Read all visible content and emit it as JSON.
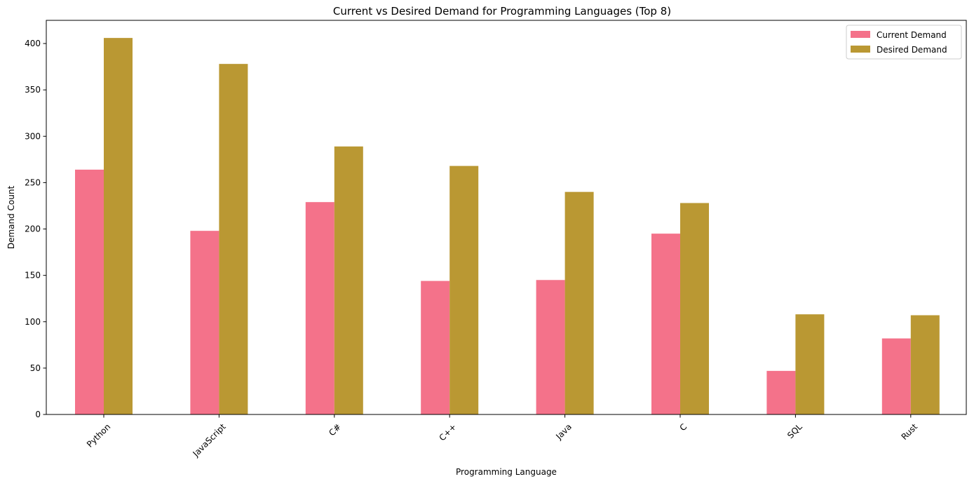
{
  "chart_data": {
    "type": "bar",
    "title": "Current vs Desired Demand for Programming Languages (Top 8)",
    "xlabel": "Programming Language",
    "ylabel": "Demand Count",
    "categories": [
      "Python",
      "JavaScript",
      "C#",
      "C++",
      "Java",
      "C",
      "SQL",
      "Rust"
    ],
    "series": [
      {
        "name": "Current Demand",
        "color": "#f4728a",
        "values": [
          264,
          198,
          229,
          144,
          145,
          195,
          47,
          82
        ]
      },
      {
        "name": "Desired Demand",
        "color": "#ba9833",
        "values": [
          406,
          378,
          289,
          268,
          240,
          228,
          108,
          107
        ]
      }
    ],
    "ylim": [
      0,
      425
    ],
    "yticks": [
      0,
      50,
      100,
      150,
      200,
      250,
      300,
      350,
      400
    ],
    "xtick_rotation": 45,
    "grid": false,
    "legend_position": "top-right"
  }
}
